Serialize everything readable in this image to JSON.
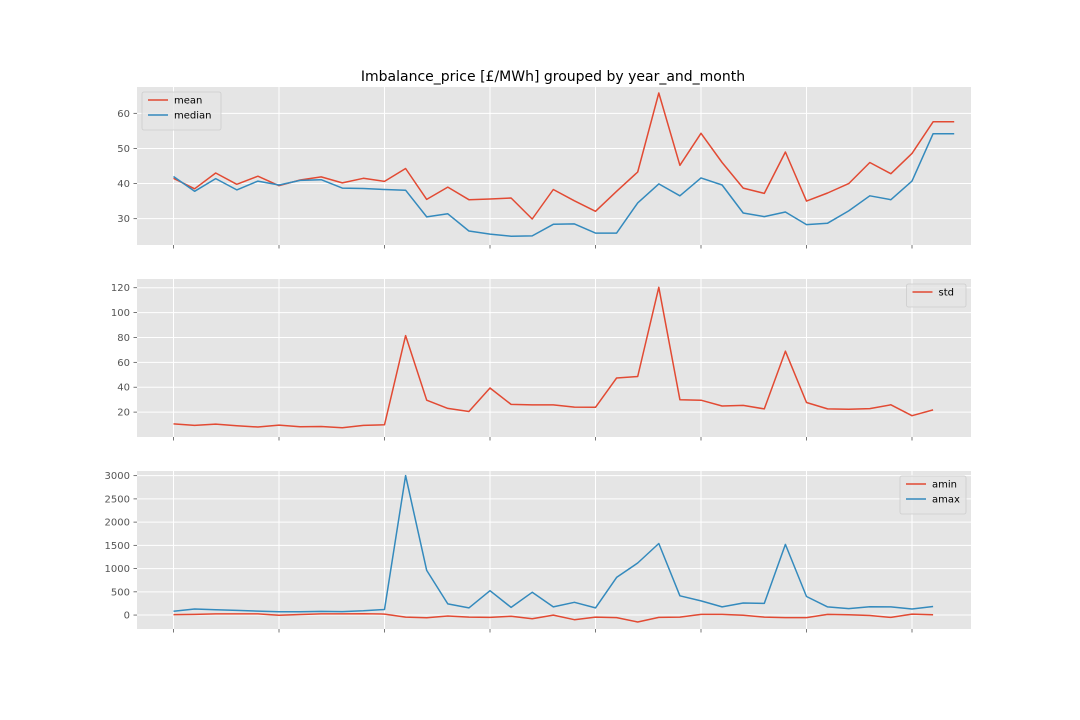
{
  "chart_data": [
    {
      "type": "line",
      "title": "Imbalance_price [£/MWh] grouped by year_and_month",
      "xlabel": "",
      "ylabel": "",
      "ylim": [
        22.5,
        67.5
      ],
      "yticks": [
        30,
        40,
        50,
        60
      ],
      "grid": true,
      "legend": "upper left",
      "x": [
        0,
        1,
        2,
        3,
        4,
        5,
        6,
        7,
        8,
        9,
        10,
        11,
        12,
        13,
        14,
        15,
        16,
        17,
        18,
        19,
        20,
        21,
        22,
        23,
        24,
        25,
        26,
        27,
        28,
        29,
        30,
        31,
        32,
        33,
        34,
        35,
        36,
        37
      ],
      "series": [
        {
          "name": "mean",
          "color": "#E24A33",
          "values": [
            41.5,
            38.5,
            43,
            39.8,
            42.1,
            39.4,
            41,
            41.9,
            40.2,
            41.5,
            40.6,
            44.3,
            35.5,
            39,
            35.4,
            35.6,
            35.9,
            29.9,
            38.3,
            35.1,
            32.1,
            37.8,
            43.3,
            65.8,
            45.2,
            54.3,
            46,
            38.7,
            37.2,
            49,
            35,
            37.3,
            40,
            46,
            42.8,
            48.6,
            57.6,
            57.6
          ]
        },
        {
          "name": "median",
          "color": "#348ABD",
          "values": [
            42,
            37.8,
            41.4,
            38.2,
            40.7,
            39.6,
            40.9,
            41.1,
            38.7,
            38.6,
            38.3,
            38.1,
            30.5,
            31.4,
            26.5,
            25.6,
            25,
            25.1,
            28.4,
            28.5,
            25.9,
            25.9,
            34.5,
            39.9,
            36.5,
            41.6,
            39.6,
            31.6,
            30.6,
            31.9,
            28.3,
            28.7,
            32.2,
            36.5,
            35.4,
            40.7,
            54.2,
            54.2
          ]
        }
      ]
    },
    {
      "type": "line",
      "title": "",
      "xlabel": "",
      "ylabel": "",
      "ylim": [
        0,
        127
      ],
      "yticks": [
        20,
        40,
        60,
        80,
        100,
        120
      ],
      "grid": true,
      "legend": "upper right",
      "x": [
        0,
        1,
        2,
        3,
        4,
        5,
        6,
        7,
        8,
        9,
        10,
        11,
        12,
        13,
        14,
        15,
        16,
        17,
        18,
        19,
        20,
        21,
        22,
        23,
        24,
        25,
        26,
        27,
        28,
        29,
        30,
        31,
        32,
        33,
        34,
        35,
        36
      ],
      "series": [
        {
          "name": "std",
          "color": "#E24A33",
          "values": [
            10.5,
            9.3,
            10.4,
            9.1,
            8,
            9.6,
            8.2,
            8.4,
            7.5,
            9.3,
            9.8,
            81.5,
            29.6,
            23,
            20.5,
            39.4,
            26.2,
            25.8,
            25.8,
            24,
            23.9,
            47.4,
            48.6,
            120.3,
            30,
            29.6,
            24.9,
            25.4,
            22.6,
            69,
            27.7,
            22.6,
            22.3,
            22.8,
            25.9,
            17.1,
            21.8
          ]
        }
      ]
    },
    {
      "type": "line",
      "title": "",
      "xlabel": "",
      "ylabel": "",
      "ylim": [
        -300,
        3100
      ],
      "yticks": [
        0,
        500,
        1000,
        1500,
        2000,
        2500,
        3000
      ],
      "grid": true,
      "legend": "upper right",
      "x": [
        0,
        1,
        2,
        3,
        4,
        5,
        6,
        7,
        8,
        9,
        10,
        11,
        12,
        13,
        14,
        15,
        16,
        17,
        18,
        19,
        20,
        21,
        22,
        23,
        24,
        25,
        26,
        27,
        28,
        29,
        30,
        31,
        32,
        33,
        34,
        35,
        36
      ],
      "series": [
        {
          "name": "amin",
          "color": "#E24A33",
          "values": [
            10,
            14,
            26,
            26,
            24,
            -4,
            11,
            25,
            24,
            30,
            20,
            -45,
            -60,
            -20,
            -45,
            -50,
            -25,
            -80,
            0,
            -100,
            -45,
            -55,
            -150,
            -50,
            -45,
            14,
            14,
            -5,
            -45,
            -55,
            -55,
            14,
            6,
            -10,
            -50,
            20,
            6
          ]
        },
        {
          "name": "amax",
          "color": "#348ABD",
          "values": [
            80,
            130,
            115,
            100,
            85,
            70,
            72,
            78,
            75,
            92,
            120,
            3000,
            960,
            240,
            155,
            525,
            165,
            490,
            175,
            275,
            155,
            810,
            1120,
            1540,
            415,
            305,
            175,
            260,
            250,
            1520,
            400,
            175,
            140,
            180,
            175,
            130,
            185
          ]
        }
      ]
    }
  ]
}
